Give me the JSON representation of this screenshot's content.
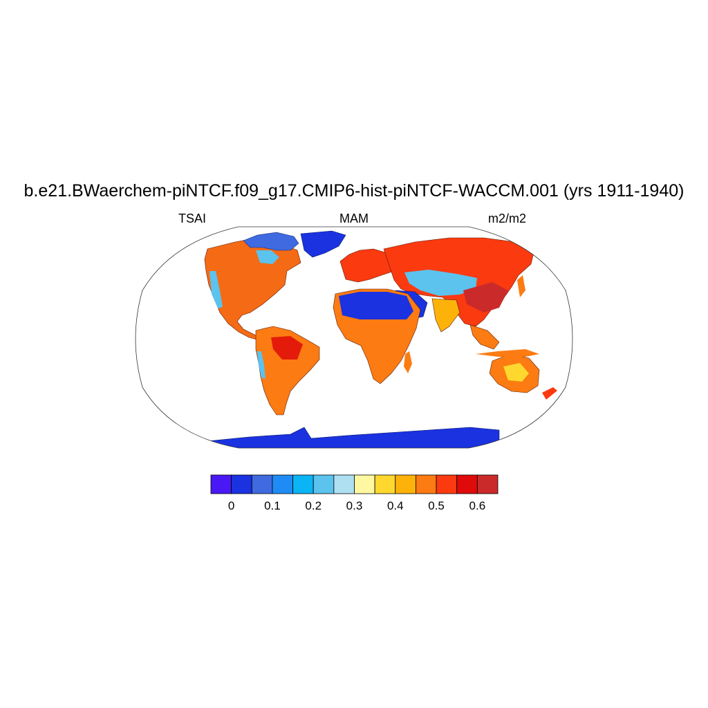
{
  "title": "b.e21.BWaerchem-piNTCF.f09_g17.CMIP6-hist-piNTCF-WACCM.001 (yrs 1911-1940)",
  "subtitle_left": "TSAI",
  "subtitle_center": "MAM",
  "subtitle_right": "m2/m2",
  "colorbar": {
    "colors": [
      "#4a18f5",
      "#1a32e0",
      "#3f6ae0",
      "#1f8cf5",
      "#0ab4f5",
      "#5cc2ee",
      "#aee0f2",
      "#fff8a0",
      "#fed82e",
      "#fdb20a",
      "#fc7b12",
      "#fb3a10",
      "#df0a0a",
      "#cb2a2a"
    ],
    "tick_labels": [
      "0",
      "0.1",
      "0.2",
      "0.3",
      "0.4",
      "0.5",
      "0.6"
    ]
  }
}
